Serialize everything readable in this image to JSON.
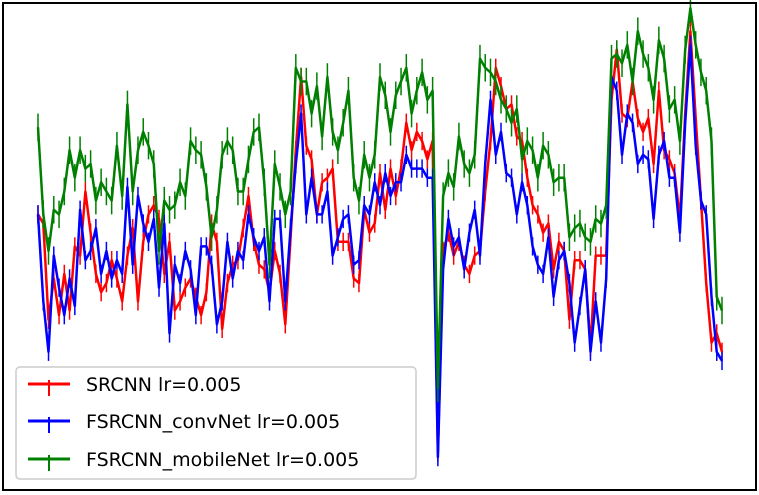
{
  "chart_data": {
    "type": "line",
    "title": "",
    "xlabel": "",
    "ylabel": "",
    "grid": false,
    "axes_ticks_visible": false,
    "error_bars": true,
    "legend_position": "bottom-left",
    "xlim": [
      0,
      130
    ],
    "ylim": [
      0,
      100
    ],
    "x": [
      0,
      1,
      2,
      3,
      4,
      5,
      6,
      7,
      8,
      9,
      10,
      11,
      12,
      13,
      14,
      15,
      16,
      17,
      18,
      19,
      20,
      21,
      22,
      23,
      24,
      25,
      26,
      27,
      28,
      29,
      30,
      31,
      32,
      33,
      34,
      35,
      36,
      37,
      38,
      39,
      40,
      41,
      42,
      43,
      44,
      45,
      46,
      47,
      48,
      49,
      50,
      51,
      52,
      53,
      54,
      55,
      56,
      57,
      58,
      59,
      60,
      61,
      62,
      63,
      64,
      65,
      66,
      67,
      68,
      69,
      70,
      71,
      72,
      73,
      74,
      75,
      76,
      77,
      78,
      79,
      80,
      81,
      82,
      83,
      84,
      85,
      86,
      87,
      88,
      89,
      90,
      91,
      92,
      93,
      94,
      95,
      96,
      97,
      98,
      99,
      100,
      101,
      102,
      103,
      104,
      105,
      106,
      107,
      108,
      109,
      110,
      111,
      112,
      113,
      114,
      115,
      116,
      117,
      118,
      119,
      120,
      121,
      122,
      123,
      124,
      125,
      126,
      127,
      128,
      129,
      130
    ],
    "series": [
      {
        "name": "SRCNN lr=0.005",
        "color": "#ff0000",
        "values": [
          58,
          56,
          35,
          44,
          36,
          45,
          37,
          51,
          49,
          63,
          54,
          45,
          41,
          43,
          48,
          44,
          39,
          49,
          55,
          39,
          52,
          58,
          60,
          57,
          45,
          52,
          37,
          39,
          42,
          44,
          40,
          36,
          41,
          56,
          52,
          33,
          43,
          47,
          48,
          55,
          62,
          52,
          47,
          46,
          41,
          50,
          45,
          34,
          53,
          72,
          88,
          73,
          70,
          58,
          65,
          66,
          68,
          52,
          52,
          52,
          44,
          43,
          59,
          54,
          56,
          67,
          59,
          68,
          62,
          68,
          78,
          72,
          76,
          74,
          70,
          74,
          6,
          50,
          54,
          49,
          52,
          47,
          45,
          49,
          50,
          63,
          74,
          90,
          86,
          81,
          82,
          75,
          74,
          66,
          60,
          58,
          54,
          56,
          46,
          52,
          50,
          35,
          48,
          48,
          46,
          29,
          49,
          49,
          49,
          83,
          94,
          80,
          79,
          87,
          79,
          76,
          79,
          69,
          85,
          72,
          70,
          67,
          57,
          80,
          98,
          79,
          61,
          43,
          30,
          32,
          28
        ],
        "error": [
          2,
          2,
          2,
          2,
          2,
          2,
          2,
          2,
          2,
          2,
          2,
          2,
          2,
          2,
          2,
          2,
          2,
          2,
          2,
          2,
          2,
          2,
          2,
          2,
          2,
          2,
          2,
          2,
          2,
          2,
          2,
          2,
          2,
          2,
          2,
          2,
          2,
          2,
          2,
          2,
          2,
          2,
          2,
          2,
          2,
          2,
          2,
          2,
          2,
          2,
          2,
          2,
          2,
          2,
          2,
          2,
          2,
          2,
          2,
          2,
          2,
          2,
          2,
          2,
          2,
          2,
          2,
          2,
          2,
          2,
          2,
          2,
          2,
          2,
          2,
          2,
          2,
          2,
          2,
          2,
          2,
          2,
          2,
          2,
          2,
          2,
          2,
          2,
          2,
          2,
          2,
          2,
          2,
          2,
          2,
          2,
          2,
          2,
          2,
          2,
          2,
          2,
          2,
          2,
          2,
          2,
          2,
          2,
          2,
          2,
          2,
          2,
          2,
          2,
          2,
          2,
          2,
          2,
          2,
          2,
          2,
          2,
          2,
          2,
          2,
          2,
          2,
          2,
          2,
          2,
          2
        ]
      },
      {
        "name": "FSRCNN_convNet lr=0.005",
        "color": "#0000ff",
        "values": [
          58,
          39,
          28,
          49,
          42,
          36,
          44,
          38,
          59,
          48,
          50,
          55,
          45,
          50,
          44,
          48,
          45,
          64,
          47,
          62,
          56,
          52,
          57,
          42,
          56,
          32,
          47,
          43,
          50,
          46,
          36,
          51,
          51,
          47,
          34,
          39,
          52,
          44,
          50,
          48,
          58,
          53,
          50,
          53,
          39,
          57,
          57,
          39,
          55,
          69,
          80,
          58,
          66,
          58,
          58,
          63,
          49,
          53,
          57,
          58,
          47,
          48,
          60,
          58,
          65,
          60,
          67,
          62,
          65,
          65,
          71,
          68,
          68,
          68,
          66,
          66,
          5,
          46,
          57,
          51,
          53,
          46,
          54,
          59,
          49,
          69,
          83,
          71,
          76,
          67,
          66,
          58,
          65,
          60,
          51,
          47,
          45,
          53,
          40,
          48,
          50,
          43,
          30,
          38,
          46,
          28,
          39,
          30,
          44,
          88,
          85,
          71,
          80,
          78,
          69,
          71,
          70,
          57,
          71,
          74,
          66,
          66,
          54,
          78,
          95,
          73,
          61,
          58,
          40,
          28,
          26
        ],
        "error": [
          2,
          2,
          2,
          2,
          2,
          2,
          2,
          2,
          2,
          2,
          2,
          2,
          2,
          2,
          2,
          2,
          2,
          2,
          2,
          2,
          2,
          2,
          2,
          2,
          2,
          2,
          2,
          2,
          2,
          2,
          2,
          2,
          2,
          2,
          2,
          2,
          2,
          2,
          2,
          2,
          2,
          2,
          2,
          2,
          2,
          2,
          2,
          2,
          2,
          2,
          2,
          2,
          2,
          2,
          2,
          2,
          2,
          2,
          2,
          2,
          2,
          2,
          2,
          2,
          2,
          2,
          2,
          2,
          2,
          2,
          2,
          2,
          2,
          2,
          2,
          2,
          2,
          2,
          2,
          2,
          2,
          2,
          2,
          2,
          2,
          2,
          2,
          2,
          2,
          2,
          2,
          2,
          2,
          2,
          2,
          2,
          2,
          2,
          2,
          2,
          2,
          2,
          2,
          2,
          2,
          2,
          2,
          2,
          2,
          2,
          2,
          2,
          2,
          2,
          2,
          2,
          2,
          2,
          2,
          2,
          2,
          2,
          2,
          2,
          2,
          2,
          2,
          2,
          2,
          2,
          2
        ]
      },
      {
        "name": "FSRCNN_mobileNet lr=0.005",
        "color": "#008000",
        "values": [
          77,
          58,
          50,
          59,
          58,
          63,
          72,
          66,
          72,
          68,
          69,
          61,
          65,
          63,
          61,
          73,
          62,
          82,
          63,
          72,
          76,
          73,
          69,
          50,
          61,
          59,
          60,
          65,
          62,
          74,
          72,
          71,
          64,
          53,
          59,
          71,
          74,
          72,
          63,
          63,
          70,
          76,
          77,
          65,
          47,
          69,
          64,
          58,
          63,
          90,
          87,
          87,
          80,
          86,
          75,
          88,
          76,
          72,
          78,
          85,
          66,
          61,
          71,
          66,
          71,
          88,
          84,
          76,
          84,
          87,
          90,
          80,
          85,
          89,
          83,
          85,
          20,
          62,
          67,
          64,
          75,
          69,
          67,
          71,
          92,
          90,
          89,
          87,
          83,
          81,
          78,
          81,
          70,
          74,
          72,
          66,
          73,
          71,
          65,
          66,
          66,
          53,
          55,
          56,
          53,
          52,
          57,
          56,
          60,
          92,
          93,
          91,
          95,
          87,
          98,
          93,
          90,
          83,
          96,
          92,
          81,
          83,
          74,
          94,
          103,
          95,
          89,
          85,
          74,
          40,
          37
        ],
        "error": [
          3,
          3,
          3,
          3,
          3,
          3,
          3,
          3,
          3,
          3,
          3,
          3,
          3,
          3,
          3,
          3,
          3,
          3,
          3,
          3,
          3,
          3,
          3,
          3,
          3,
          3,
          3,
          3,
          3,
          3,
          3,
          3,
          3,
          3,
          3,
          3,
          3,
          3,
          3,
          3,
          3,
          3,
          3,
          3,
          3,
          3,
          3,
          3,
          3,
          3,
          3,
          3,
          3,
          3,
          3,
          3,
          3,
          3,
          3,
          3,
          3,
          3,
          3,
          3,
          3,
          3,
          3,
          3,
          3,
          3,
          3,
          3,
          3,
          3,
          3,
          3,
          3,
          3,
          3,
          3,
          3,
          3,
          3,
          3,
          3,
          3,
          3,
          3,
          3,
          3,
          3,
          3,
          3,
          3,
          3,
          3,
          3,
          3,
          3,
          3,
          3,
          3,
          3,
          3,
          3,
          3,
          3,
          3,
          3,
          3,
          3,
          3,
          3,
          3,
          3,
          3,
          3,
          3,
          3,
          3,
          3,
          3,
          3,
          3,
          3,
          3,
          3,
          3,
          3,
          3,
          3
        ]
      }
    ],
    "legend": [
      {
        "label": "SRCNN lr=0.005",
        "color": "#ff0000"
      },
      {
        "label": "FSRCNN_convNet lr=0.005",
        "color": "#0000ff"
      },
      {
        "label": "FSRCNN_mobileNet lr=0.005",
        "color": "#008000"
      }
    ]
  }
}
